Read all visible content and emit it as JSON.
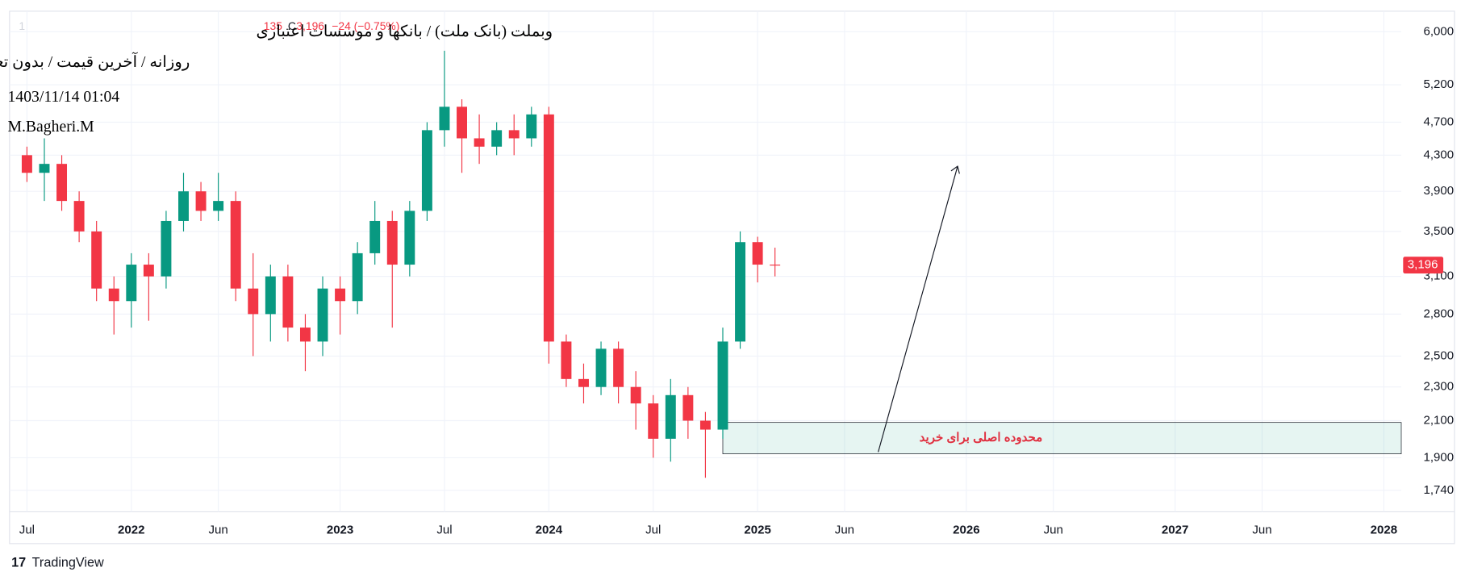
{
  "chart_data": {
    "type": "candlestick",
    "header": {
      "title": "وبملت (بانک ملت) / بانکها و موسسات اعتباری",
      "subtitle": "روزانه / آخرین قیمت / بدون تعدیل",
      "date": "1403/11/14 01:04",
      "author": "M.Bagheri.M",
      "fragment": "135",
      "close_prefix": "C",
      "close": "3,196",
      "change": "−24 (−0.75%)"
    },
    "x": [
      "2021-07",
      "2021-08",
      "2021-09",
      "2021-10",
      "2021-11",
      "2021-12",
      "2022-01",
      "2022-02",
      "2022-03",
      "2022-04",
      "2022-05",
      "2022-06",
      "2022-07",
      "2022-08",
      "2022-09",
      "2022-10",
      "2022-11",
      "2022-12",
      "2023-01",
      "2023-02",
      "2023-03",
      "2023-04",
      "2023-05",
      "2023-06",
      "2023-07",
      "2023-08",
      "2023-09",
      "2023-10",
      "2023-11",
      "2023-12",
      "2024-01",
      "2024-02",
      "2024-03",
      "2024-04",
      "2024-05",
      "2024-06",
      "2024-07",
      "2024-08",
      "2024-09",
      "2024-10",
      "2024-11",
      "2024-12",
      "2025-01",
      "2025-02"
    ],
    "open": [
      4300,
      4100,
      4200,
      3800,
      3500,
      3000,
      2900,
      3200,
      3100,
      3600,
      3900,
      3700,
      3800,
      3000,
      2800,
      3100,
      2700,
      2600,
      3000,
      2900,
      3300,
      3600,
      3200,
      3700,
      4600,
      4900,
      4500,
      4400,
      4600,
      4500,
      4800,
      2600,
      2350,
      2300,
      2550,
      2300,
      2200,
      2000,
      2250,
      2100,
      2050,
      2600,
      3400,
      3200
    ],
    "high": [
      4400,
      4500,
      4300,
      3900,
      3600,
      3100,
      3300,
      3300,
      3700,
      4100,
      4000,
      4100,
      3900,
      3300,
      3200,
      3200,
      2800,
      3100,
      3100,
      3400,
      3800,
      3700,
      3800,
      4700,
      5700,
      5000,
      4800,
      4700,
      4800,
      4900,
      4900,
      2650,
      2450,
      2600,
      2600,
      2400,
      2250,
      2350,
      2300,
      2150,
      2700,
      3500,
      3450,
      3350
    ],
    "low": [
      4000,
      3800,
      3700,
      3400,
      2900,
      2650,
      2700,
      2750,
      3000,
      3500,
      3600,
      3600,
      2900,
      2500,
      2600,
      2600,
      2400,
      2500,
      2650,
      2800,
      3200,
      2700,
      3100,
      3600,
      4400,
      4100,
      4200,
      4300,
      4300,
      4400,
      2450,
      2300,
      2200,
      2250,
      2200,
      2050,
      1900,
      1880,
      2000,
      1800,
      2000,
      2550,
      3050,
      3100
    ],
    "close": [
      4100,
      4200,
      3800,
      3500,
      3000,
      2900,
      3200,
      3100,
      3600,
      3900,
      3700,
      3800,
      3000,
      2800,
      3100,
      2700,
      2600,
      3000,
      2900,
      3300,
      3600,
      3200,
      3700,
      4600,
      4900,
      4500,
      4400,
      4600,
      4500,
      4800,
      2600,
      2350,
      2300,
      2550,
      2300,
      2200,
      2000,
      2250,
      2100,
      2050,
      2600,
      3400,
      3200,
      3196
    ],
    "up_color": "#089981",
    "down_color": "#f23645",
    "log_scale": true,
    "grid": true,
    "ylim": [
      1642,
      6342
    ],
    "yticks": [
      {
        "value": 6000,
        "label": "6,000"
      },
      {
        "value": 5200,
        "label": "5,200"
      },
      {
        "value": 4700,
        "label": "4,700"
      },
      {
        "value": 4300,
        "label": "4,300"
      },
      {
        "value": 3900,
        "label": "3,900"
      },
      {
        "value": 3500,
        "label": "3,500"
      },
      {
        "value": 3100,
        "label": "3,100"
      },
      {
        "value": 2800,
        "label": "2,800"
      },
      {
        "value": 2500,
        "label": "2,500"
      },
      {
        "value": 2300,
        "label": "2,300"
      },
      {
        "value": 2100,
        "label": "2,100"
      },
      {
        "value": 1900,
        "label": "1,900"
      },
      {
        "value": 1740,
        "label": "1,740"
      }
    ],
    "xlim": [
      "2021-06",
      "2028-02"
    ],
    "xticks": [
      {
        "value": "2021-07",
        "label": "Jul"
      },
      {
        "value": "2022-01",
        "label": "2022"
      },
      {
        "value": "2022-06",
        "label": "Jun"
      },
      {
        "value": "2023-01",
        "label": "2023"
      },
      {
        "value": "2023-07",
        "label": "Jul"
      },
      {
        "value": "2024-01",
        "label": "2024"
      },
      {
        "value": "2024-07",
        "label": "Jul"
      },
      {
        "value": "2025-01",
        "label": "2025"
      },
      {
        "value": "2025-06",
        "label": "Jun"
      },
      {
        "value": "2026-01",
        "label": "2026"
      },
      {
        "value": "2026-06",
        "label": "Jun"
      },
      {
        "value": "2027-01",
        "label": "2027"
      },
      {
        "value": "2027-06",
        "label": "Jun"
      },
      {
        "value": "2028-01",
        "label": "2028"
      }
    ],
    "last_price": {
      "value": 3196,
      "label": "3,196"
    },
    "zone": {
      "text": "محدوده اصلی برای خرید",
      "y": [
        1920,
        2090
      ],
      "x": [
        "2024-11",
        "2028-02"
      ]
    },
    "brand": "TradingView"
  }
}
